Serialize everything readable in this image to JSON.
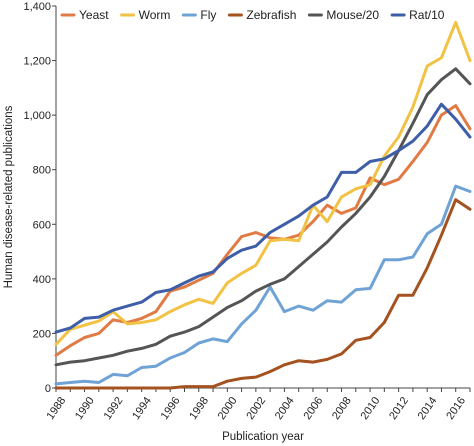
{
  "chart_data": {
    "type": "line",
    "xlabel": "Publication year",
    "ylabel": "Human disease-related publications",
    "xlim": [
      1988,
      2017
    ],
    "ylim": [
      0,
      1400
    ],
    "x_ticks": [
      1988,
      1990,
      1992,
      1994,
      1996,
      1998,
      2000,
      2002,
      2004,
      2006,
      2008,
      2010,
      2012,
      2014,
      2016
    ],
    "y_ticks": [
      0,
      200,
      400,
      600,
      800,
      1000,
      1200,
      1400
    ],
    "y_tick_labels": [
      "0",
      "200",
      "400",
      "600",
      "800",
      "1,000",
      "1,200",
      "1,400"
    ],
    "legend_position": "top",
    "x": [
      1988,
      1989,
      1990,
      1991,
      1992,
      1993,
      1994,
      1995,
      1996,
      1997,
      1998,
      1999,
      2000,
      2001,
      2002,
      2003,
      2004,
      2005,
      2006,
      2007,
      2008,
      2009,
      2010,
      2011,
      2012,
      2013,
      2014,
      2015,
      2016,
      2017
    ],
    "series": [
      {
        "name": "Yeast",
        "color": "#e07b45",
        "values": [
          120,
          155,
          185,
          200,
          250,
          240,
          255,
          280,
          355,
          370,
          395,
          420,
          490,
          555,
          570,
          550,
          545,
          560,
          610,
          670,
          640,
          660,
          770,
          745,
          765,
          830,
          900,
          1000,
          1035,
          950
        ]
      },
      {
        "name": "Worm",
        "color": "#f2c244",
        "values": [
          160,
          215,
          230,
          245,
          280,
          235,
          240,
          250,
          280,
          305,
          325,
          310,
          385,
          420,
          450,
          540,
          545,
          540,
          670,
          610,
          700,
          730,
          745,
          850,
          920,
          1030,
          1180,
          1210,
          1340,
          1200
        ]
      },
      {
        "name": "Fly",
        "color": "#6fa3d6",
        "values": [
          15,
          20,
          25,
          20,
          50,
          45,
          75,
          80,
          110,
          130,
          165,
          180,
          170,
          235,
          285,
          370,
          280,
          300,
          285,
          320,
          315,
          360,
          365,
          470,
          470,
          480,
          565,
          600,
          740,
          720
        ]
      },
      {
        "name": "Zebrafish",
        "color": "#a4521f",
        "values": [
          0,
          0,
          0,
          0,
          0,
          0,
          0,
          0,
          0,
          5,
          5,
          5,
          25,
          35,
          40,
          60,
          85,
          100,
          95,
          105,
          125,
          175,
          185,
          240,
          340,
          340,
          440,
          560,
          690,
          655
        ]
      },
      {
        "name": "Mouse/20",
        "color": "#555555",
        "values": [
          85,
          95,
          100,
          110,
          120,
          135,
          145,
          160,
          190,
          205,
          225,
          260,
          295,
          320,
          355,
          380,
          400,
          445,
          490,
          535,
          590,
          640,
          700,
          775,
          870,
          970,
          1075,
          1130,
          1170,
          1115
        ]
      },
      {
        "name": "Rat/10",
        "color": "#3f5ea8",
        "values": [
          205,
          220,
          255,
          260,
          285,
          300,
          315,
          350,
          360,
          385,
          410,
          425,
          475,
          505,
          520,
          570,
          600,
          630,
          670,
          700,
          790,
          790,
          830,
          840,
          870,
          905,
          960,
          1040,
          985,
          920
        ]
      }
    ]
  }
}
